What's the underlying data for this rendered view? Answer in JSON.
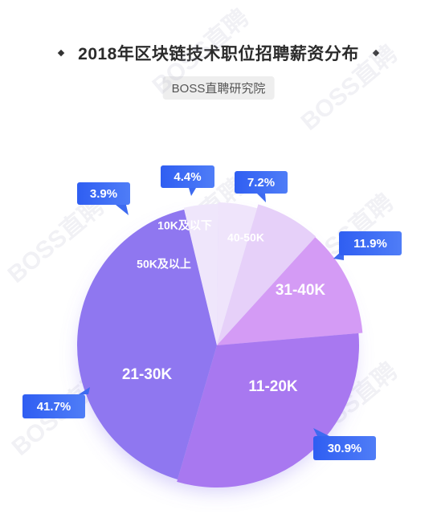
{
  "header": {
    "title": "2018年区块链技术职位招聘薪资分布",
    "source": "BOSS直聘研究院"
  },
  "watermark": {
    "text": "BOSS直聘"
  },
  "colors": {
    "gradient_start": "#4f6ff5",
    "gradient_end": "#8d5ff0",
    "callout": "#3d6af0"
  },
  "chart_data": {
    "type": "pie",
    "title": "2018年区块链技术职位招聘薪资分布",
    "legend": "none",
    "slices": [
      {
        "label": "10K及以下",
        "value": 4.4,
        "display": "4.4%",
        "color": "#efe4fb"
      },
      {
        "label": "40-50K",
        "value": 7.2,
        "display": "7.2%",
        "color": "#e6d0f9"
      },
      {
        "label": "31-40K",
        "value": 11.9,
        "display": "11.9%",
        "color": "#d49bf5"
      },
      {
        "label": "11-20K",
        "value": 30.9,
        "display": "30.9%",
        "color": "#a878f0"
      },
      {
        "label": "21-30K",
        "value": 41.7,
        "display": "41.7%",
        "color": "#8f77f0"
      },
      {
        "label": "50K及以上",
        "value": 3.9,
        "display": "3.9%",
        "color": "#efe6fb"
      }
    ]
  }
}
